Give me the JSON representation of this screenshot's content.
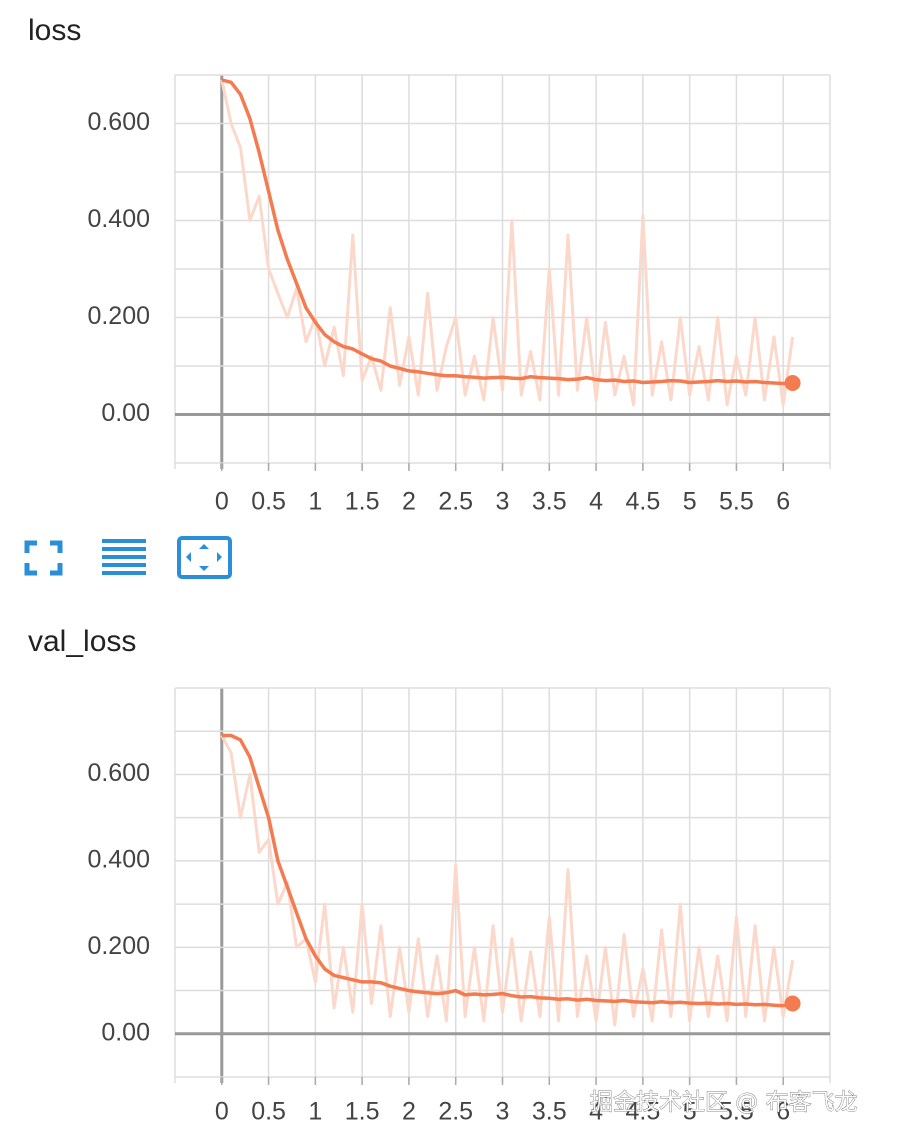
{
  "chart_data": [
    {
      "type": "line",
      "title": "loss",
      "x": [
        0,
        0.1,
        0.2,
        0.3,
        0.4,
        0.5,
        0.6,
        0.7,
        0.8,
        0.9,
        1.0,
        1.1,
        1.2,
        1.3,
        1.4,
        1.5,
        1.6,
        1.7,
        1.8,
        1.9,
        2.0,
        2.1,
        2.2,
        2.3,
        2.4,
        2.5,
        2.6,
        2.7,
        2.8,
        2.9,
        3.0,
        3.1,
        3.2,
        3.3,
        3.4,
        3.5,
        3.6,
        3.7,
        3.8,
        3.9,
        4.0,
        4.1,
        4.2,
        4.3,
        4.4,
        4.5,
        4.6,
        4.7,
        4.8,
        4.9,
        5.0,
        5.1,
        5.2,
        5.3,
        5.4,
        5.5,
        5.6,
        5.7,
        5.8,
        5.9,
        6.0,
        6.1
      ],
      "series": [
        {
          "color": "#fcd8cb",
          "values": [
            0.69,
            0.6,
            0.55,
            0.4,
            0.45,
            0.3,
            0.25,
            0.2,
            0.26,
            0.15,
            0.2,
            0.1,
            0.18,
            0.08,
            0.37,
            0.07,
            0.12,
            0.05,
            0.22,
            0.06,
            0.16,
            0.04,
            0.25,
            0.05,
            0.14,
            0.2,
            0.04,
            0.12,
            0.03,
            0.2,
            0.05,
            0.4,
            0.04,
            0.13,
            0.03,
            0.3,
            0.04,
            0.37,
            0.05,
            0.2,
            0.03,
            0.19,
            0.04,
            0.12,
            0.02,
            0.41,
            0.04,
            0.15,
            0.03,
            0.2,
            0.04,
            0.14,
            0.03,
            0.2,
            0.02,
            0.12,
            0.04,
            0.2,
            0.03,
            0.16,
            0.02,
            0.16
          ]
        },
        {
          "color": "#f47b4f",
          "values": [
            0.69,
            0.685,
            0.66,
            0.61,
            0.54,
            0.46,
            0.38,
            0.32,
            0.27,
            0.22,
            0.19,
            0.165,
            0.15,
            0.14,
            0.135,
            0.125,
            0.115,
            0.11,
            0.1,
            0.095,
            0.09,
            0.088,
            0.085,
            0.082,
            0.08,
            0.08,
            0.078,
            0.077,
            0.075,
            0.076,
            0.077,
            0.075,
            0.074,
            0.078,
            0.076,
            0.075,
            0.074,
            0.072,
            0.073,
            0.076,
            0.072,
            0.07,
            0.071,
            0.068,
            0.069,
            0.066,
            0.067,
            0.068,
            0.07,
            0.069,
            0.066,
            0.067,
            0.068,
            0.07,
            0.068,
            0.069,
            0.067,
            0.068,
            0.066,
            0.065,
            0.064,
            0.065
          ]
        }
      ],
      "xlim": [
        -0.5,
        6.5
      ],
      "xticks": [
        0,
        0.5,
        1,
        1.5,
        2,
        2.5,
        3,
        3.5,
        4,
        4.5,
        5,
        5.5,
        6
      ],
      "xgrid": [
        -0.5,
        0,
        0.5,
        1,
        1.5,
        2,
        2.5,
        3,
        3.5,
        4,
        4.5,
        5,
        5.5,
        6,
        6.5
      ],
      "ylim": [
        -0.1,
        0.7
      ],
      "yticks": [
        {
          "value": 0,
          "label": "0.00"
        },
        {
          "value": 0.2,
          "label": "0.200"
        },
        {
          "value": 0.4,
          "label": "0.400"
        },
        {
          "value": 0.6,
          "label": "0.600"
        }
      ],
      "ygrid": [
        -0.1,
        0,
        0.1,
        0.2,
        0.3,
        0.4,
        0.5,
        0.6,
        0.7
      ],
      "grid": true
    },
    {
      "type": "line",
      "title": "val_loss",
      "x": [
        0,
        0.1,
        0.2,
        0.3,
        0.4,
        0.5,
        0.6,
        0.7,
        0.8,
        0.9,
        1.0,
        1.1,
        1.2,
        1.3,
        1.4,
        1.5,
        1.6,
        1.7,
        1.8,
        1.9,
        2.0,
        2.1,
        2.2,
        2.3,
        2.4,
        2.5,
        2.6,
        2.7,
        2.8,
        2.9,
        3.0,
        3.1,
        3.2,
        3.3,
        3.4,
        3.5,
        3.6,
        3.7,
        3.8,
        3.9,
        4.0,
        4.1,
        4.2,
        4.3,
        4.4,
        4.5,
        4.6,
        4.7,
        4.8,
        4.9,
        5.0,
        5.1,
        5.2,
        5.3,
        5.4,
        5.5,
        5.6,
        5.7,
        5.8,
        5.9,
        6.0,
        6.1
      ],
      "series": [
        {
          "color": "#fcd8cb",
          "values": [
            0.69,
            0.65,
            0.5,
            0.6,
            0.42,
            0.45,
            0.3,
            0.35,
            0.2,
            0.22,
            0.12,
            0.3,
            0.06,
            0.2,
            0.05,
            0.3,
            0.07,
            0.25,
            0.04,
            0.2,
            0.05,
            0.22,
            0.04,
            0.18,
            0.03,
            0.39,
            0.04,
            0.2,
            0.03,
            0.25,
            0.05,
            0.22,
            0.03,
            0.19,
            0.04,
            0.27,
            0.03,
            0.38,
            0.04,
            0.18,
            0.03,
            0.2,
            0.02,
            0.23,
            0.04,
            0.15,
            0.03,
            0.24,
            0.04,
            0.3,
            0.03,
            0.2,
            0.04,
            0.18,
            0.03,
            0.27,
            0.04,
            0.25,
            0.03,
            0.2,
            0.04,
            0.17
          ]
        },
        {
          "color": "#f47b4f",
          "values": [
            0.69,
            0.69,
            0.68,
            0.64,
            0.57,
            0.5,
            0.4,
            0.34,
            0.28,
            0.22,
            0.18,
            0.15,
            0.135,
            0.13,
            0.125,
            0.12,
            0.12,
            0.118,
            0.11,
            0.105,
            0.1,
            0.097,
            0.095,
            0.093,
            0.095,
            0.1,
            0.09,
            0.092,
            0.09,
            0.091,
            0.093,
            0.088,
            0.085,
            0.086,
            0.083,
            0.082,
            0.08,
            0.081,
            0.078,
            0.08,
            0.077,
            0.076,
            0.075,
            0.077,
            0.074,
            0.073,
            0.072,
            0.074,
            0.072,
            0.073,
            0.071,
            0.07,
            0.071,
            0.069,
            0.07,
            0.068,
            0.069,
            0.067,
            0.068,
            0.066,
            0.065,
            0.07
          ]
        }
      ],
      "xlim": [
        -0.5,
        6.5
      ],
      "xticks": [
        0,
        0.5,
        1,
        1.5,
        2,
        2.5,
        3,
        3.5,
        4,
        4.5,
        5,
        5.5,
        6
      ],
      "xgrid": [
        -0.5,
        0,
        0.5,
        1,
        1.5,
        2,
        2.5,
        3,
        3.5,
        4,
        4.5,
        5,
        5.5,
        6,
        6.5
      ],
      "ylim": [
        -0.1,
        0.8
      ],
      "yticks": [
        {
          "value": 0,
          "label": "0.00"
        },
        {
          "value": 0.2,
          "label": "0.200"
        },
        {
          "value": 0.4,
          "label": "0.400"
        },
        {
          "value": 0.6,
          "label": "0.600"
        }
      ],
      "ygrid": [
        -0.1,
        0,
        0.1,
        0.2,
        0.3,
        0.4,
        0.5,
        0.6,
        0.7,
        0.8
      ],
      "grid": true
    }
  ],
  "watermark": "掘金技术社区 @ 布客飞龙"
}
